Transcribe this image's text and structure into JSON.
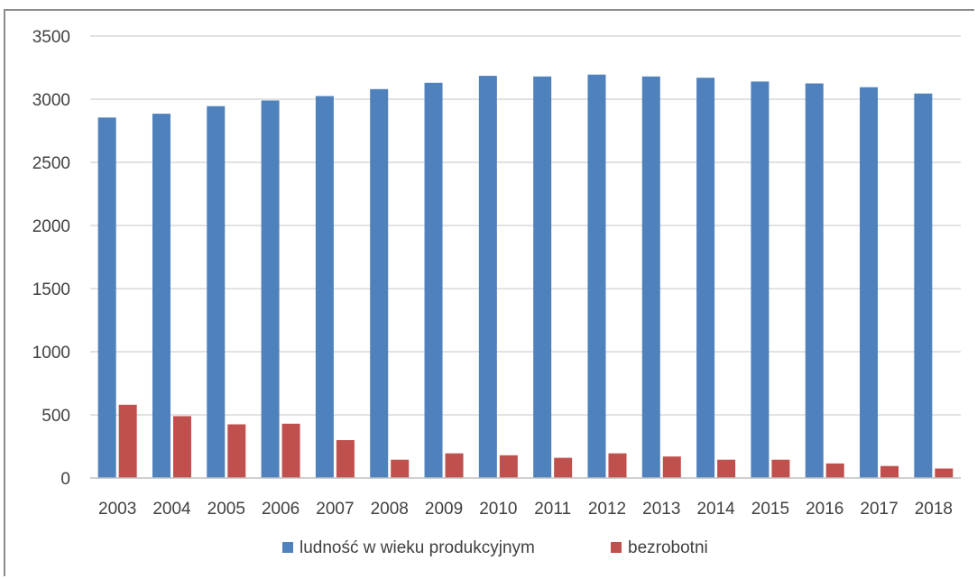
{
  "caption": "",
  "chart_data": {
    "type": "bar",
    "title": "",
    "xlabel": "",
    "ylabel": "",
    "categories": [
      "2003",
      "2004",
      "2005",
      "2006",
      "2007",
      "2008",
      "2009",
      "2010",
      "2011",
      "2012",
      "2013",
      "2014",
      "2015",
      "2016",
      "2017",
      "2018"
    ],
    "series": [
      {
        "name": "ludność w wieku produkcyjnym",
        "color": "#4f81bd",
        "values": [
          2855,
          2885,
          2945,
          2990,
          3025,
          3080,
          3130,
          3185,
          3180,
          3195,
          3180,
          3170,
          3140,
          3125,
          3095,
          3045
        ]
      },
      {
        "name": "bezrobotni",
        "color": "#c0504d",
        "values": [
          580,
          490,
          425,
          430,
          300,
          145,
          195,
          180,
          160,
          195,
          170,
          145,
          145,
          115,
          95,
          75
        ]
      }
    ],
    "ylim": [
      0,
      3500
    ],
    "yticks": [
      0,
      500,
      1000,
      1500,
      2000,
      2500,
      3000,
      3500
    ],
    "ytick_labels": [
      "0",
      "500",
      "1000",
      "1500",
      "2000",
      "2500",
      "3000",
      "3500"
    ],
    "grid": true,
    "legend_position": "bottom"
  }
}
